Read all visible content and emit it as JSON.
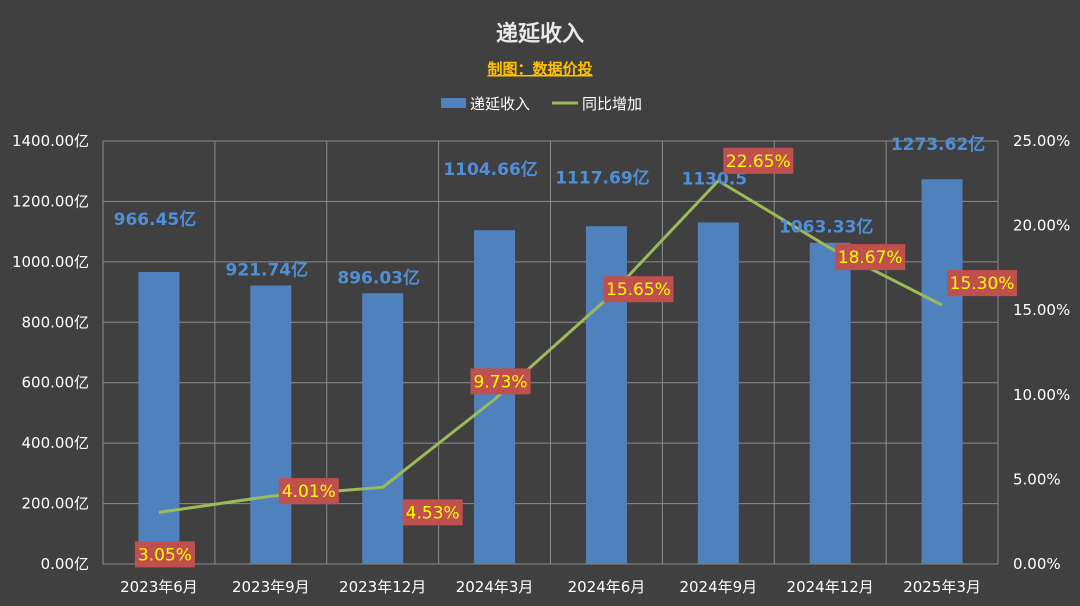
{
  "chart_data": {
    "type": "bar",
    "title": "递延收入",
    "subtitle": "制图：数据价投",
    "categories": [
      "2023年6月",
      "2023年9月",
      "2023年12月",
      "2024年3月",
      "2024年6月",
      "2024年9月",
      "2024年12月",
      "2025年3月"
    ],
    "series": [
      {
        "name": "递延收入",
        "type": "bar",
        "axis": "left",
        "color": "#4f81bd",
        "values": [
          966.45,
          921.74,
          896.03,
          1104.66,
          1117.69,
          1130.5,
          1063.33,
          1273.62
        ],
        "labels": [
          "966.45亿",
          "921.74亿",
          "896.03亿",
          "1104.66亿",
          "1117.69亿",
          "1130.5",
          "1063.33亿",
          "1273.62亿"
        ]
      },
      {
        "name": "同比增加",
        "type": "line",
        "axis": "right",
        "color": "#9bbb59",
        "values": [
          3.05,
          4.01,
          4.53,
          9.73,
          15.65,
          22.65,
          18.67,
          15.3
        ],
        "labels": [
          "3.05%",
          "4.01%",
          "4.53%",
          "9.73%",
          "15.65%",
          "22.65%",
          "18.67%",
          "15.30%"
        ]
      }
    ],
    "y_left": {
      "min": 0,
      "max": 1400,
      "step": 200,
      "ticks": [
        "0.00亿",
        "200.00亿",
        "400.00亿",
        "600.00亿",
        "800.00亿",
        "1000.00亿",
        "1200.00亿",
        "1400.00亿"
      ]
    },
    "y_right": {
      "min": 0,
      "max": 25,
      "step": 5,
      "ticks": [
        "0.00%",
        "5.00%",
        "10.00%",
        "15.00%",
        "20.00%",
        "25.00%"
      ]
    },
    "grid": true,
    "legend_position": "top",
    "colors": {
      "background": "#404040",
      "grid": "#8c8c8c",
      "label_box": "#c0504d",
      "pct_text": "#ffff00",
      "bar_label": "#4f8fd8",
      "subtitle": "#ffc000"
    }
  }
}
